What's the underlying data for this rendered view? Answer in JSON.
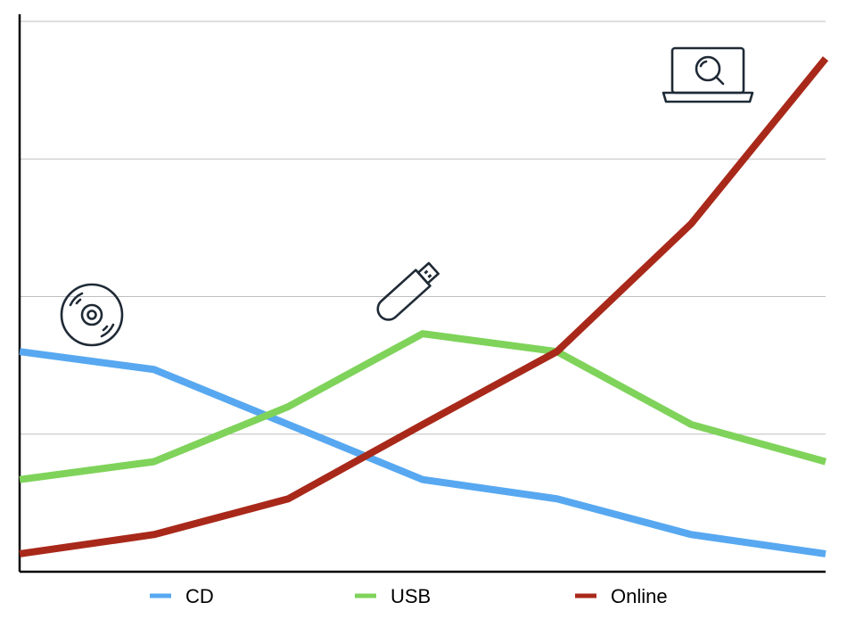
{
  "chart_data": {
    "type": "line",
    "title": "",
    "xlabel": "",
    "ylabel": "",
    "x": [
      0,
      1,
      2,
      3,
      4,
      5,
      6
    ],
    "ylim": [
      0,
      4
    ],
    "grid": true,
    "legend": "bottom",
    "series": [
      {
        "name": "CD",
        "color": "#57a8f0",
        "values": [
          1.6,
          1.47,
          1.07,
          0.67,
          0.53,
          0.27,
          0.13
        ],
        "icon": "cd-icon"
      },
      {
        "name": "USB",
        "color": "#7fd35a",
        "values": [
          0.67,
          0.8,
          1.2,
          1.73,
          1.6,
          1.07,
          0.8
        ],
        "icon": "usb-drive-icon"
      },
      {
        "name": "Online",
        "color": "#a8291a",
        "values": [
          0.13,
          0.27,
          0.53,
          1.07,
          1.6,
          2.53,
          3.73
        ],
        "icon": "laptop-search-icon"
      }
    ]
  }
}
